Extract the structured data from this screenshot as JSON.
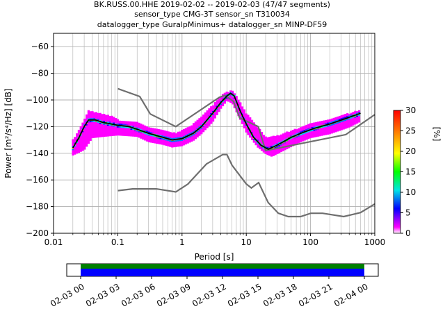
{
  "title_lines": [
    "BK.RUSS.00.HHE   2019-02-02 -- 2019-02-03  (47/47 segments)",
    "sensor_type CMG-3T sensor_sn T310034",
    "datalogger_type GuralpMinimus+ datalogger_sn MINP-DF59"
  ],
  "chart_data": [
    {
      "type": "heatmap",
      "xlabel": "Period [s]",
      "ylabel": "Power [m²/s⁴/Hz] [dB]",
      "xscale": "log",
      "xlim": [
        0.01,
        1000
      ],
      "ylim": [
        -200,
        -50
      ],
      "grid": true,
      "x_tick_labels": [
        "0.01",
        "0.1",
        "1",
        "10",
        "100",
        "1000"
      ],
      "y_ticks": [
        -200,
        -180,
        -160,
        -140,
        -120,
        -100,
        -80,
        -60
      ],
      "colorbar": {
        "label": "[%]",
        "range": [
          0,
          30
        ],
        "ticks": [
          0,
          5,
          10,
          15,
          20,
          25,
          30
        ],
        "colors": [
          "#ffffff",
          "#ff00ff",
          "#0000ff",
          "#00e5e5",
          "#00ff00",
          "#ffff00",
          "#ff8000",
          "#ff0000"
        ]
      },
      "mode_curve": {
        "color": "#000000",
        "points": [
          [
            0.02,
            -136
          ],
          [
            0.025,
            -128
          ],
          [
            0.03,
            -120
          ],
          [
            0.035,
            -115
          ],
          [
            0.045,
            -115
          ],
          [
            0.06,
            -117
          ],
          [
            0.08,
            -118
          ],
          [
            0.1,
            -119
          ],
          [
            0.15,
            -120
          ],
          [
            0.2,
            -122
          ],
          [
            0.3,
            -125
          ],
          [
            0.5,
            -128
          ],
          [
            0.7,
            -130
          ],
          [
            1.0,
            -129
          ],
          [
            1.5,
            -125
          ],
          [
            2.0,
            -120
          ],
          [
            3.0,
            -110
          ],
          [
            4.0,
            -102
          ],
          [
            5.0,
            -97
          ],
          [
            5.7,
            -95
          ],
          [
            6.5,
            -97
          ],
          [
            8.0,
            -108
          ],
          [
            10.0,
            -118
          ],
          [
            13.0,
            -128
          ],
          [
            17.0,
            -134
          ],
          [
            22.0,
            -137
          ],
          [
            30.0,
            -134
          ],
          [
            50.0,
            -128
          ],
          [
            80.0,
            -124
          ],
          [
            120.0,
            -121
          ],
          [
            200.0,
            -118
          ],
          [
            350.0,
            -114
          ],
          [
            600.0,
            -110
          ]
        ]
      },
      "nhnm": {
        "color": "#6e6e6e",
        "points": [
          [
            0.1,
            -91.5
          ],
          [
            0.22,
            -97.4
          ],
          [
            0.32,
            -110.5
          ],
          [
            0.8,
            -120
          ],
          [
            3.8,
            -98
          ],
          [
            4.6,
            -96.5
          ],
          [
            6.3,
            -101
          ],
          [
            7.9,
            -113.5
          ],
          [
            15.4,
            -120
          ],
          [
            20,
            -138
          ],
          [
            354,
            -126
          ],
          [
            1000,
            -111
          ]
        ]
      },
      "nlnm": {
        "color": "#6e6e6e",
        "points": [
          [
            0.1,
            -168
          ],
          [
            0.17,
            -166.7
          ],
          [
            0.4,
            -166.7
          ],
          [
            0.8,
            -169
          ],
          [
            1.24,
            -163
          ],
          [
            2.4,
            -148
          ],
          [
            4.3,
            -141
          ],
          [
            5.0,
            -141
          ],
          [
            6.0,
            -149
          ],
          [
            10.0,
            -163
          ],
          [
            12.0,
            -166
          ],
          [
            15.6,
            -162
          ],
          [
            21.9,
            -177
          ],
          [
            31.6,
            -185
          ],
          [
            45,
            -187.5
          ],
          [
            70,
            -187.5
          ],
          [
            101,
            -185
          ],
          [
            154,
            -185
          ],
          [
            328,
            -187.5
          ],
          [
            600,
            -184.5
          ],
          [
            1000,
            -178
          ]
        ]
      },
      "psd_cloud": {
        "upper": [
          [
            0.02,
            -130
          ],
          [
            0.03,
            -115
          ],
          [
            0.035,
            -108
          ],
          [
            0.05,
            -110
          ],
          [
            0.08,
            -112
          ],
          [
            0.1,
            -115
          ],
          [
            0.2,
            -117
          ],
          [
            0.3,
            -120
          ],
          [
            0.5,
            -123
          ],
          [
            0.8,
            -125
          ],
          [
            1.5,
            -118
          ],
          [
            2.0,
            -113
          ],
          [
            3.0,
            -104
          ],
          [
            4.0,
            -97
          ],
          [
            5.0,
            -94
          ],
          [
            6.0,
            -93
          ],
          [
            7.0,
            -97
          ],
          [
            8.0,
            -102
          ],
          [
            10.0,
            -110
          ],
          [
            15.0,
            -120
          ],
          [
            20.0,
            -128
          ],
          [
            30.0,
            -127
          ],
          [
            50.0,
            -123
          ],
          [
            100.0,
            -118
          ],
          [
            200.0,
            -114
          ],
          [
            400.0,
            -110
          ],
          [
            700.0,
            -106
          ]
        ],
        "lower": [
          [
            0.02,
            -141
          ],
          [
            0.03,
            -137
          ],
          [
            0.04,
            -128
          ],
          [
            0.06,
            -127
          ],
          [
            0.1,
            -126
          ],
          [
            0.2,
            -127
          ],
          [
            0.3,
            -131
          ],
          [
            0.5,
            -133
          ],
          [
            0.7,
            -135
          ],
          [
            1.0,
            -134
          ],
          [
            1.5,
            -130
          ],
          [
            2.0,
            -125
          ],
          [
            3.0,
            -116
          ],
          [
            4.0,
            -106
          ],
          [
            5.0,
            -100
          ],
          [
            6.0,
            -102
          ],
          [
            8.0,
            -114
          ],
          [
            10.0,
            -124
          ],
          [
            15.0,
            -135
          ],
          [
            20.0,
            -140
          ],
          [
            25.0,
            -142
          ],
          [
            40.0,
            -137
          ],
          [
            70.0,
            -131
          ],
          [
            100.0,
            -128
          ],
          [
            200.0,
            -125
          ],
          [
            400.0,
            -120
          ],
          [
            700.0,
            -114
          ]
        ]
      }
    },
    {
      "type": "timeline",
      "tick_labels": [
        "02-03 00",
        "02-03 03",
        "02-03 06",
        "02-03 09",
        "02-03 12",
        "02-03 15",
        "02-03 18",
        "02-03 21",
        "02-04 00"
      ],
      "coverage_start_fraction": 0.0,
      "coverage_end_fraction": 1.0,
      "rows": [
        {
          "color": "#008000"
        },
        {
          "color": "#0000ff"
        }
      ]
    }
  ]
}
